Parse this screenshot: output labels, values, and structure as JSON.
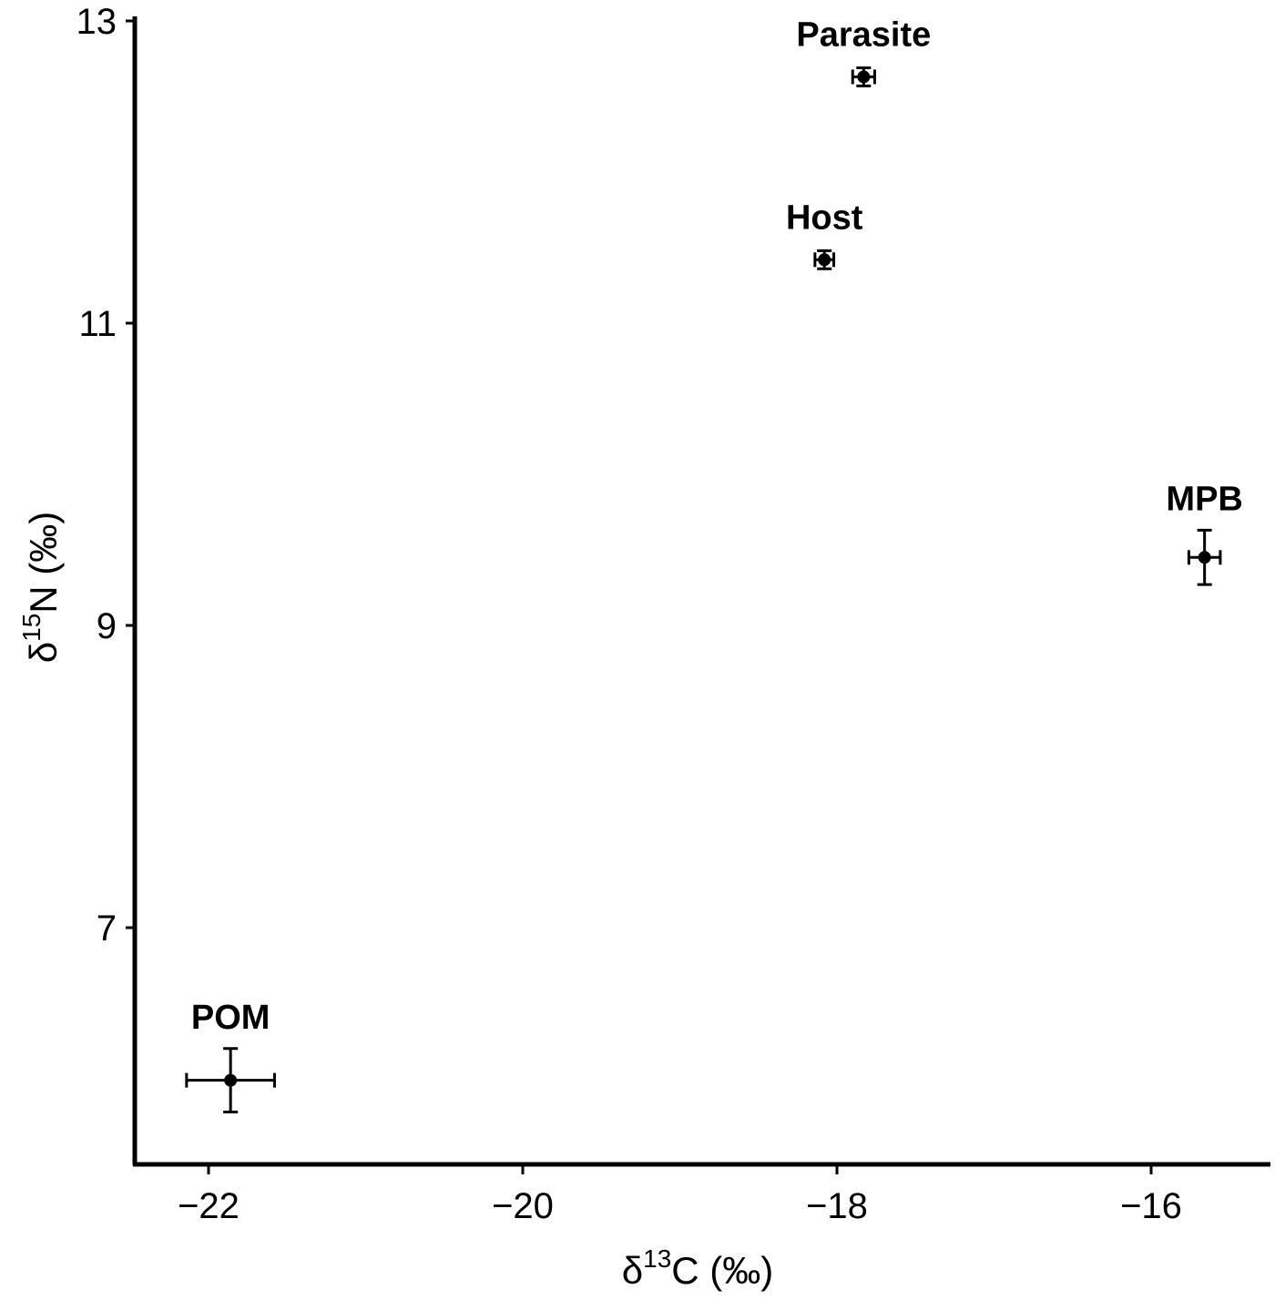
{
  "chart_data": {
    "type": "scatter",
    "title": "",
    "xlabel": "δ13C (‰)",
    "ylabel": "δ15N (‰)",
    "xlabel_parts": {
      "delta": "δ",
      "sup": "13",
      "rest": "C (‰)"
    },
    "ylabel_parts": {
      "delta": "δ",
      "sup": "15",
      "rest": "N (‰)"
    },
    "xlim": [
      -22.15,
      -15.4
    ],
    "ylim": [
      5.45,
      13.0
    ],
    "x_ticks": [
      -22,
      -20,
      -18,
      -16
    ],
    "x_tick_labels": [
      "−22",
      "−20",
      "−18",
      "−16"
    ],
    "y_ticks": [
      7,
      9,
      11,
      13
    ],
    "y_tick_labels": [
      "7",
      "9",
      "11",
      "13"
    ],
    "grid": false,
    "legend": null,
    "points": [
      {
        "label": "Parasite",
        "x": -17.83,
        "y": 12.63,
        "x_err": 0.07,
        "y_err": 0.06
      },
      {
        "label": "Host",
        "x": -18.08,
        "y": 11.42,
        "x_err": 0.06,
        "y_err": 0.06
      },
      {
        "label": "MPB",
        "x": -15.66,
        "y": 9.45,
        "x_err": 0.1,
        "y_err": 0.18
      },
      {
        "label": "POM",
        "x": -21.86,
        "y": 5.99,
        "x_err": 0.28,
        "y_err": 0.21
      }
    ]
  }
}
